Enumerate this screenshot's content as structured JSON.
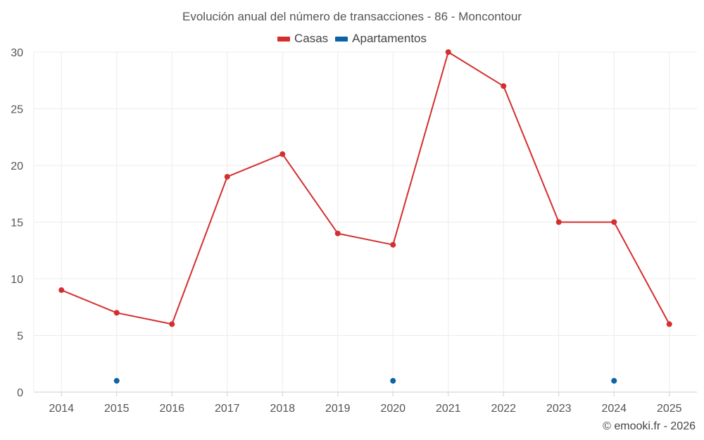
{
  "chart_data": {
    "type": "line",
    "title": "Evolución anual del número de transacciones - 86 - Moncontour",
    "xlabel": "",
    "ylabel": "",
    "categories": [
      "2014",
      "2015",
      "2016",
      "2017",
      "2018",
      "2019",
      "2020",
      "2021",
      "2022",
      "2023",
      "2024",
      "2025"
    ],
    "ylim": [
      0,
      30
    ],
    "yticks": [
      "0",
      "5",
      "10",
      "15",
      "20",
      "25",
      "30"
    ],
    "grid": true,
    "legend_position": "top-center",
    "series": [
      {
        "name": "Casas",
        "color": "#d32f2f",
        "line": true,
        "values": [
          9,
          7,
          6,
          19,
          21,
          14,
          13,
          30,
          27,
          15,
          15,
          6
        ]
      },
      {
        "name": "Apartamentos",
        "color": "#0a63a6",
        "line": false,
        "values": [
          null,
          1,
          null,
          null,
          null,
          null,
          1,
          null,
          null,
          null,
          1,
          null
        ]
      }
    ]
  },
  "credit": "© emooki.fr - 2026"
}
